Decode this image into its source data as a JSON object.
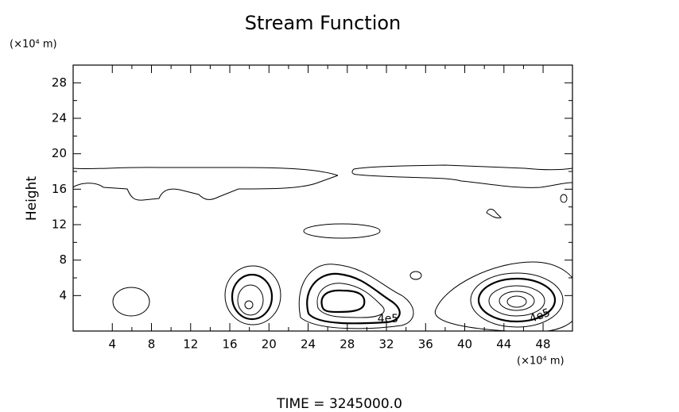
{
  "chart_data": {
    "type": "contour",
    "title": "Stream Function",
    "y_unit": "(×10⁴ m)",
    "x_unit": "(×10⁴ m)",
    "y_label": "Height",
    "footer": "TIME = 3245000.0",
    "xlim": [
      0,
      51
    ],
    "xticks": [
      4,
      8,
      12,
      16,
      20,
      24,
      28,
      32,
      36,
      40,
      44,
      48
    ],
    "ylim": [
      0,
      30
    ],
    "yticks": [
      4,
      8,
      12,
      16,
      20,
      24,
      28
    ],
    "contour_labels": [
      {
        "value": 400000,
        "label": "4e5"
      },
      {
        "value": 400000,
        "label": "4e5"
      }
    ],
    "color": "#000000"
  }
}
